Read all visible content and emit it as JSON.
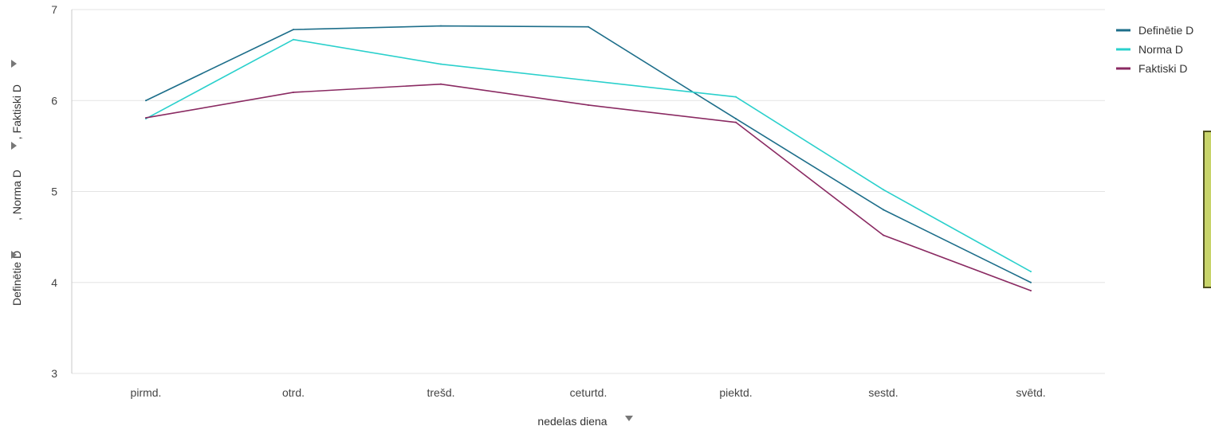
{
  "chart_data": {
    "type": "line",
    "categories": [
      "pirmd.",
      "otrd.",
      "trešd.",
      "ceturtd.",
      "piektd.",
      "sestd.",
      "svētd."
    ],
    "series": [
      {
        "name": "Definētie D",
        "color": "#1d6e8a",
        "values": [
          6.0,
          6.78,
          6.82,
          6.81,
          5.8,
          4.8,
          4.0
        ]
      },
      {
        "name": "Norma D",
        "color": "#2ad0cc",
        "values": [
          5.8,
          6.67,
          6.4,
          6.22,
          6.04,
          5.02,
          4.12
        ]
      },
      {
        "name": "Faktiski D",
        "color": "#8a2a62",
        "values": [
          5.81,
          6.09,
          6.18,
          5.95,
          5.76,
          4.52,
          3.91
        ]
      }
    ],
    "yticks": [
      3,
      4,
      5,
      6,
      7
    ],
    "ylim": [
      3,
      7
    ],
    "grid": true,
    "legend_placement": "top-right",
    "xlabel": "nedelas diena",
    "ylabel_parts": [
      "Definētie D",
      ", Norma D",
      ", Faktiski D"
    ]
  },
  "icons": {
    "xlabel_caret": "caret-down-icon",
    "ylabel_caret": "caret-right-icon"
  }
}
